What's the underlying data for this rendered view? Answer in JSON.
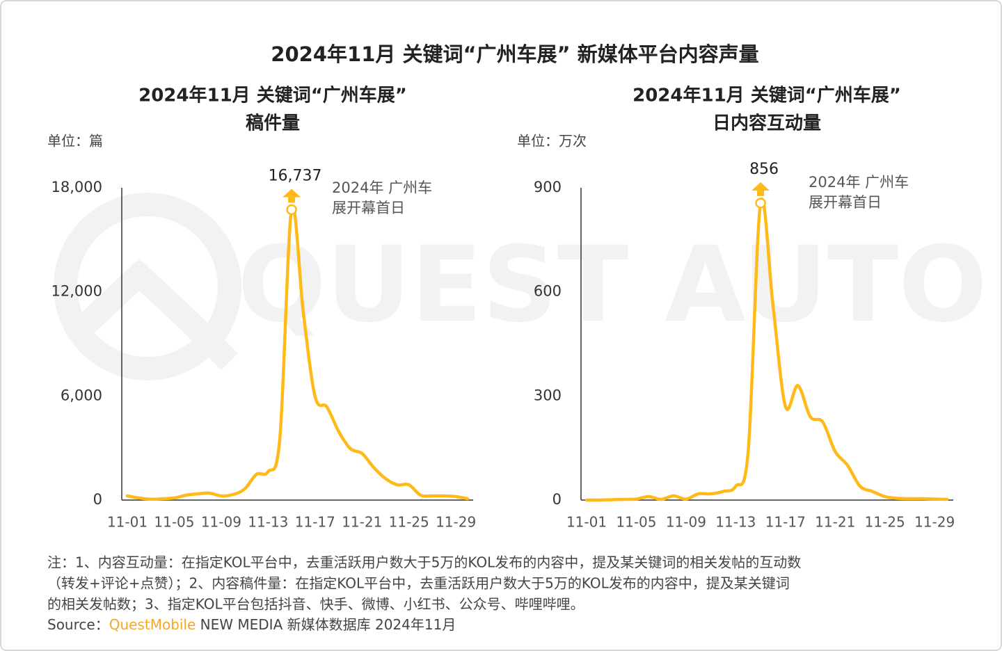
{
  "title": "2024年11月 关键词“广州车展” 新媒体平台内容声量",
  "watermark": "QUEST AUTO",
  "chart_data": [
    {
      "type": "line",
      "title": "2024年11月  关键词“广州车展”",
      "subtitle": "稿件量",
      "unit": "单位：篇",
      "annotation": [
        "2024年 广州车",
        "展开幕首日"
      ],
      "color": "#FFBA1A",
      "categories": [
        "11-01",
        null,
        null,
        null,
        "11-05",
        null,
        null,
        null,
        "11-09",
        null,
        null,
        null,
        "11-13",
        null,
        null,
        null,
        "11-17",
        null,
        null,
        null,
        "11-21",
        null,
        null,
        null,
        "11-25",
        null,
        null,
        null,
        "11-29",
        null
      ],
      "values": [
        240,
        120,
        50,
        80,
        120,
        280,
        360,
        400,
        240,
        320,
        640,
        1480,
        1640,
        3570,
        16737,
        10800,
        5970,
        5370,
        3970,
        2970,
        2690,
        1880,
        1240,
        880,
        880,
        280,
        240,
        240,
        200,
        80
      ],
      "value_labels": [
        null,
        null,
        null,
        null,
        null,
        null,
        null,
        null,
        null,
        null,
        null,
        null,
        null,
        null,
        "16,737",
        null,
        null,
        null,
        null,
        null,
        null,
        null,
        null,
        null,
        null,
        null,
        null,
        null,
        null,
        null
      ],
      "ylim": [
        0,
        18000
      ],
      "yticks": [
        0,
        {
          "value": 6000,
          "label": "6,000"
        },
        {
          "value": 12000,
          "label": "12,000"
        },
        {
          "value": 18000,
          "label": "18,000"
        }
      ]
    },
    {
      "type": "line",
      "title": "2024年11月  关键词“广州车展”",
      "subtitle": "日内容互动量",
      "unit": "单位：万次",
      "annotation": [
        "2024年 广州车",
        "展开幕首日"
      ],
      "color": "#FFBA1A",
      "categories": [
        "11-01",
        null,
        null,
        null,
        "11-05",
        null,
        null,
        null,
        "11-09",
        null,
        null,
        null,
        "11-13",
        null,
        null,
        null,
        "11-17",
        null,
        null,
        null,
        "11-21",
        null,
        null,
        null,
        "11-25",
        null,
        null,
        null,
        "11-29",
        null
      ],
      "values": [
        0,
        0,
        1,
        2,
        3,
        10,
        2,
        12,
        3,
        18,
        18,
        25,
        40,
        140,
        856,
        560,
        270,
        330,
        240,
        225,
        140,
        100,
        40,
        25,
        10,
        5,
        4,
        4,
        3,
        2
      ],
      "ylim": [
        0,
        900
      ],
      "yticks": [
        0,
        300,
        600,
        900
      ]
    }
  ],
  "notes": [
    "注：1、内容互动量：在指定KOL平台中，去重活跃用户数大于5万的KOL发布的内容中，提及某关键词的相关发帖的互动数",
    "（转发+评论+点赞）；2、内容稿件量：在指定KOL平台中，去重活跃用户数大于5万的KOL发布的内容中，提及某关键词",
    "的相关发帖数；3、指定KOL平台包括抖音、快手、微博、小红书、公众号、哔哩哔哩。"
  ],
  "source": {
    "label": "Source：",
    "brand": "QuestMobile",
    "text": " NEW MEDIA 新媒体数据库 2024年11月"
  }
}
